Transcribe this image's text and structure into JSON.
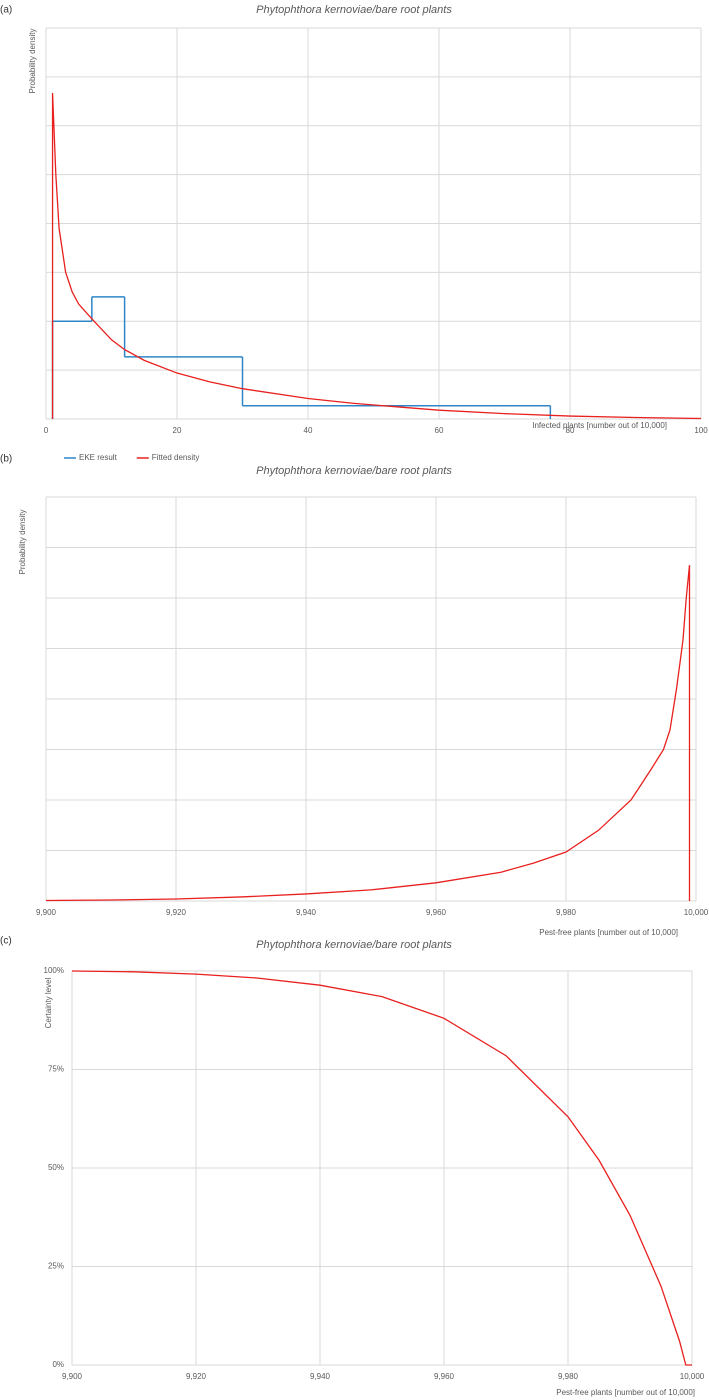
{
  "chart_data": [
    {
      "type": "line",
      "panel_label": "(a)",
      "title": "Phytophthora kernoviae/bare root plants",
      "x_label": "Infected plants [number out of 10,000]",
      "y_label": "Probability density",
      "xlim": [
        0,
        100
      ],
      "xticks": [
        0,
        20,
        40,
        60,
        80,
        100
      ],
      "ylim": [
        0,
        8
      ],
      "yticks": [
        0,
        1,
        2,
        3,
        4,
        5,
        6,
        7,
        8
      ],
      "ytick_labels": false,
      "grid": true,
      "legend": "bottom-left",
      "series": [
        {
          "name": "EKE result",
          "type": "step",
          "color": "#2e86c8",
          "bins": [
            1,
            7,
            12,
            30,
            77
          ],
          "values": [
            2.0,
            2.5,
            1.27,
            0.27
          ]
        },
        {
          "name": "Fitted density",
          "type": "line",
          "color": "#e8201e",
          "x": [
            1,
            1,
            1.5,
            2,
            3,
            4,
            5,
            7,
            10,
            12,
            15,
            20,
            25,
            30,
            40,
            47,
            60,
            70,
            80,
            90,
            100
          ],
          "values": [
            0,
            6.67,
            5.0,
            3.9,
            3.0,
            2.6,
            2.35,
            2.05,
            1.62,
            1.42,
            1.2,
            0.94,
            0.76,
            0.62,
            0.42,
            0.32,
            0.18,
            0.11,
            0.06,
            0.03,
            0.01
          ]
        }
      ]
    },
    {
      "type": "line",
      "panel_label": "(b)",
      "title": "Phytophthora kernoviae/bare root plants",
      "x_label": "Pest-free plants [number out of 10,000]",
      "y_label": "Probability density",
      "xlim": [
        9900,
        10000
      ],
      "xticks": [
        {
          "value": 9900,
          "label": "9,900"
        },
        {
          "value": 9920,
          "label": "9,920"
        },
        {
          "value": 9940,
          "label": "9,940"
        },
        {
          "value": 9960,
          "label": "9,960"
        },
        {
          "value": 9980,
          "label": "9,980"
        },
        {
          "value": 10000,
          "label": "10,000"
        }
      ],
      "ylim": [
        0,
        8
      ],
      "yticks": [
        0,
        1,
        2,
        3,
        4,
        5,
        6,
        7,
        8
      ],
      "ytick_labels": false,
      "grid": true,
      "series": [
        {
          "type": "line",
          "color": "#e8201e",
          "x": [
            9900,
            9910,
            9920,
            9930,
            9940,
            9950,
            9960,
            9970,
            9975,
            9980,
            9985,
            9990,
            9993,
            9995,
            9996,
            9997,
            9998,
            9998.5,
            9999,
            9999
          ],
          "values": [
            0.01,
            0.02,
            0.04,
            0.08,
            0.14,
            0.22,
            0.36,
            0.57,
            0.75,
            0.97,
            1.4,
            2.0,
            2.59,
            3.0,
            3.39,
            4.2,
            5.17,
            6.0,
            6.65,
            0
          ]
        }
      ]
    },
    {
      "type": "line",
      "panel_label": "(c)",
      "title": "Phytophthora kernoviae/bare root plants",
      "x_label": "Pest-free plants [number out of 10,000]",
      "y_label": "Certainty level",
      "xlim": [
        9900,
        10000
      ],
      "xticks": [
        {
          "value": 9900,
          "label": "9,900"
        },
        {
          "value": 9920,
          "label": "9,920"
        },
        {
          "value": 9940,
          "label": "9,940"
        },
        {
          "value": 9960,
          "label": "9,960"
        },
        {
          "value": 9980,
          "label": "9,980"
        },
        {
          "value": 10000,
          "label": "10,000"
        }
      ],
      "ylim": [
        0,
        100
      ],
      "yticks": [
        {
          "value": 0,
          "label": "0%"
        },
        {
          "value": 25,
          "label": "25%"
        },
        {
          "value": 50,
          "label": "50%"
        },
        {
          "value": 75,
          "label": "75%"
        },
        {
          "value": 100,
          "label": "100%"
        }
      ],
      "ytick_labels": true,
      "grid": true,
      "series": [
        {
          "type": "line",
          "color": "#e8201e",
          "x": [
            9900,
            9910,
            9920,
            9930,
            9940,
            9950,
            9960,
            9970,
            9980,
            9985,
            9990,
            9995,
            9998,
            9999,
            10000
          ],
          "values": [
            100,
            99.8,
            99.2,
            98.2,
            96.4,
            93.5,
            88,
            78.5,
            63,
            52,
            38,
            20,
            6,
            0,
            0
          ]
        }
      ]
    }
  ]
}
